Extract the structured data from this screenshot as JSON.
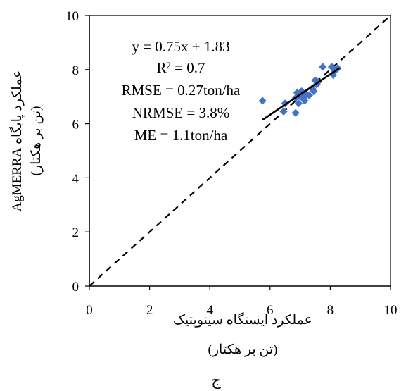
{
  "chart_data": {
    "type": "scatter",
    "title": "",
    "xlabel": "عملکرد ایستگاه سینوپتیک",
    "xlabel_units": "(تن بر هکتار)",
    "ylabel": "عملکرد پایگاه AgMERRA",
    "ylabel_units": "(تن بر هکتار)",
    "xlim": [
      0,
      10
    ],
    "ylim": [
      0,
      10
    ],
    "xticks": [
      "0",
      "2",
      "4",
      "6",
      "8",
      "10"
    ],
    "yticks": [
      "0",
      "2",
      "4",
      "6",
      "8",
      "10"
    ],
    "grid": false,
    "marker_color": "#4472C4",
    "points": [
      {
        "x": 5.75,
        "y": 6.85
      },
      {
        "x": 6.45,
        "y": 6.45
      },
      {
        "x": 6.5,
        "y": 6.75
      },
      {
        "x": 6.85,
        "y": 6.4
      },
      {
        "x": 6.85,
        "y": 6.95
      },
      {
        "x": 6.9,
        "y": 7.15
      },
      {
        "x": 6.95,
        "y": 6.75
      },
      {
        "x": 7.0,
        "y": 7.0
      },
      {
        "x": 7.05,
        "y": 7.2
      },
      {
        "x": 7.1,
        "y": 6.95
      },
      {
        "x": 7.15,
        "y": 6.85
      },
      {
        "x": 7.2,
        "y": 7.1
      },
      {
        "x": 7.3,
        "y": 7.05
      },
      {
        "x": 7.4,
        "y": 7.3
      },
      {
        "x": 7.45,
        "y": 7.2
      },
      {
        "x": 7.5,
        "y": 7.6
      },
      {
        "x": 7.55,
        "y": 7.45
      },
      {
        "x": 7.6,
        "y": 7.55
      },
      {
        "x": 7.75,
        "y": 8.1
      },
      {
        "x": 8.05,
        "y": 8.1
      },
      {
        "x": 8.1,
        "y": 7.8
      },
      {
        "x": 8.15,
        "y": 7.95
      },
      {
        "x": 8.25,
        "y": 8.05
      }
    ],
    "trendline": {
      "slope": 0.75,
      "intercept": 1.83,
      "x_range": [
        5.75,
        8.3
      ],
      "color": "#000000"
    },
    "reference_line": {
      "slope": 1,
      "intercept": 0,
      "style": "dashed",
      "color": "#000000"
    },
    "annotations": [
      "y = 0.75x + 1.83",
      "R² = 0.7",
      "RMSE = 0.27ton/ha",
      "NRMSE = 3.8%",
      "ME = 1.1ton/ha"
    ]
  },
  "figure_label": "ج"
}
